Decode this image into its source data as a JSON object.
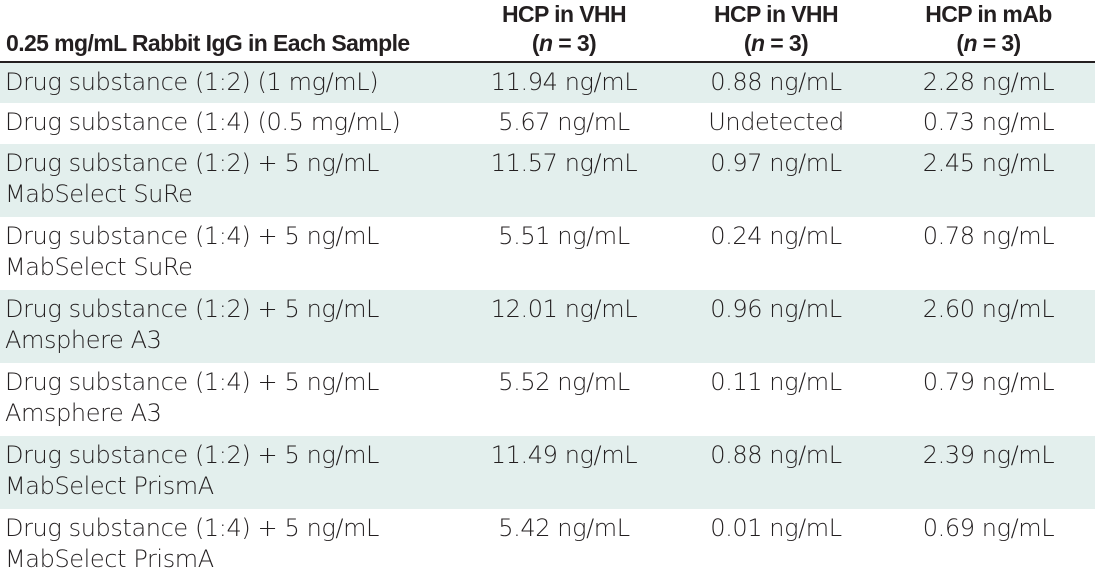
{
  "table": {
    "headers": [
      {
        "line1": "0.25 mg/mL Rabbit IgG in Each Sample",
        "line2": ""
      },
      {
        "line1": "HCP in VHH",
        "line2_prefix": "(",
        "line2_italic": "n",
        "line2_suffix": " = 3)"
      },
      {
        "line1": "HCP in VHH",
        "line2_prefix": "(",
        "line2_italic": "n",
        "line2_suffix": " = 3)"
      },
      {
        "line1": "HCP in mAb",
        "line2_prefix": "(",
        "line2_italic": "n",
        "line2_suffix": " = 3)"
      }
    ],
    "rows": [
      {
        "sample_line1": "Drug substance (1:2) (1 mg/mL)",
        "sample_line2": "",
        "vhh_a": "11.94 ng/mL",
        "vhh_b": "0.88 ng/mL",
        "mab": "2.28 ng/mL",
        "shaded": true
      },
      {
        "sample_line1": "Drug substance (1:4) (0.5 mg/mL)",
        "sample_line2": "",
        "vhh_a": "5.67 ng/mL",
        "vhh_b": "Undetected",
        "mab": "0.73 ng/mL",
        "shaded": false
      },
      {
        "sample_line1": "Drug substance (1:2) + 5 ng/mL",
        "sample_line2": "MabSelect SuRe",
        "vhh_a": "11.57 ng/mL",
        "vhh_b": "0.97 ng/mL",
        "mab": "2.45 ng/mL",
        "shaded": true
      },
      {
        "sample_line1": "Drug substance (1:4) + 5 ng/mL",
        "sample_line2": "MabSelect SuRe",
        "vhh_a": "5.51 ng/mL",
        "vhh_b": "0.24 ng/mL",
        "mab": "0.78 ng/mL",
        "shaded": false
      },
      {
        "sample_line1": "Drug substance (1:2) + 5 ng/mL",
        "sample_line2": "Amsphere A3",
        "vhh_a": "12.01 ng/mL",
        "vhh_b": "0.96 ng/mL",
        "mab": "2.60 ng/mL",
        "shaded": true
      },
      {
        "sample_line1": "Drug substance (1:4) + 5 ng/mL",
        "sample_line2": "Amsphere A3",
        "vhh_a": "5.52 ng/mL",
        "vhh_b": "0.11 ng/mL",
        "mab": "0.79 ng/mL",
        "shaded": false
      },
      {
        "sample_line1": "Drug substance (1:2) + 5 ng/mL",
        "sample_line2": "MabSelect PrismA",
        "vhh_a": "11.49 ng/mL",
        "vhh_b": "0.88 ng/mL",
        "mab": "2.39 ng/mL",
        "shaded": true
      },
      {
        "sample_line1": "Drug substance (1:4) + 5 ng/mL",
        "sample_line2": "MabSelect PrismA",
        "vhh_a": "5.42 ng/mL",
        "vhh_b": "0.01 ng/mL",
        "mab": "0.69 ng/mL",
        "shaded": false
      }
    ]
  },
  "colors": {
    "text": "#231f20",
    "shaded_row": "#e3efed",
    "header_rule": "#231f20",
    "background": "#ffffff"
  }
}
